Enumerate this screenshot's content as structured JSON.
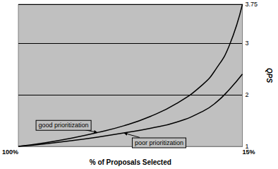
{
  "chart_data": {
    "type": "line",
    "x_label": "% of Proposals Selected",
    "y_label": "QPS",
    "x": [
      100,
      90,
      80,
      70,
      60,
      50,
      40,
      30,
      25,
      20,
      15
    ],
    "series": [
      {
        "name": "good prioritization",
        "color": "#000000",
        "values": [
          1,
          1.07,
          1.16,
          1.27,
          1.4,
          1.58,
          1.83,
          2.2,
          2.5,
          2.95,
          3.75
        ]
      },
      {
        "name": "poor prioritization",
        "color": "#000000",
        "values": [
          1,
          1.05,
          1.11,
          1.18,
          1.26,
          1.35,
          1.47,
          1.68,
          1.85,
          2.1,
          2.4
        ]
      }
    ],
    "xlim": [
      100,
      15
    ],
    "xticks": [
      {
        "value": 100,
        "label": "100%"
      },
      {
        "value": 15,
        "label": "15%"
      }
    ],
    "ylim": [
      1,
      3.75
    ],
    "yticks": [
      1,
      2,
      3,
      3.75
    ],
    "grid": true
  }
}
